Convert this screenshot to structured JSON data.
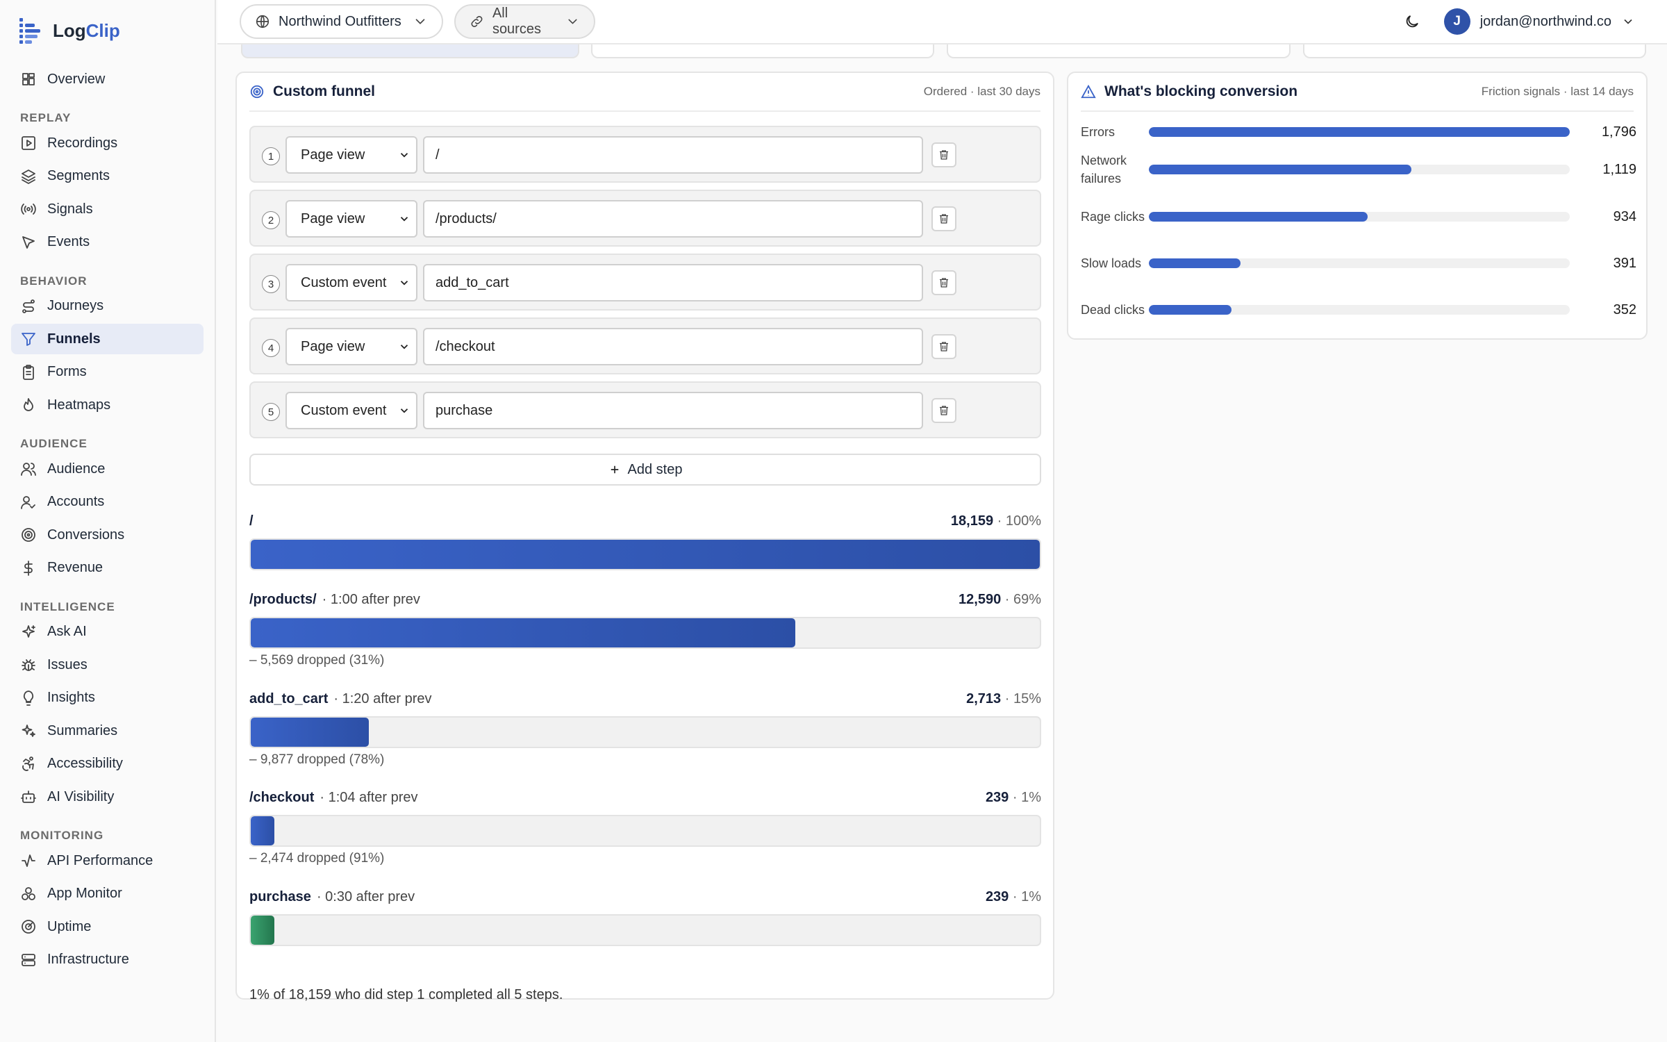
{
  "app": {
    "logo_part1": "Log",
    "logo_part2": "Clip"
  },
  "sidebar": {
    "top_items": [
      {
        "label": "Overview",
        "icon": "grid-icon"
      }
    ],
    "sections": [
      {
        "title": "REPLAY",
        "items": [
          {
            "label": "Recordings",
            "icon": "play-icon"
          },
          {
            "label": "Segments",
            "icon": "layers-icon"
          },
          {
            "label": "Signals",
            "icon": "radio-icon"
          },
          {
            "label": "Events",
            "icon": "pointer-icon"
          }
        ]
      },
      {
        "title": "BEHAVIOR",
        "items": [
          {
            "label": "Journeys",
            "icon": "route-icon"
          },
          {
            "label": "Funnels",
            "icon": "funnel-icon",
            "active": true
          },
          {
            "label": "Forms",
            "icon": "clipboard-icon"
          },
          {
            "label": "Heatmaps",
            "icon": "flame-icon"
          }
        ]
      },
      {
        "title": "AUDIENCE",
        "items": [
          {
            "label": "Audience",
            "icon": "users-icon"
          },
          {
            "label": "Accounts",
            "icon": "user-check-icon"
          },
          {
            "label": "Conversions",
            "icon": "target-icon"
          },
          {
            "label": "Revenue",
            "icon": "dollar-icon"
          }
        ]
      },
      {
        "title": "INTELLIGENCE",
        "items": [
          {
            "label": "Ask AI",
            "icon": "sparkle-icon"
          },
          {
            "label": "Issues",
            "icon": "bug-icon"
          },
          {
            "label": "Insights",
            "icon": "lightbulb-icon"
          },
          {
            "label": "Summaries",
            "icon": "sparkles-icon"
          },
          {
            "label": "Accessibility",
            "icon": "accessibility-icon"
          },
          {
            "label": "AI Visibility",
            "icon": "bot-icon"
          }
        ]
      },
      {
        "title": "MONITORING",
        "items": [
          {
            "label": "API Performance",
            "icon": "activity-icon"
          },
          {
            "label": "App Monitor",
            "icon": "boxes-icon"
          },
          {
            "label": "Uptime",
            "icon": "gauge-icon"
          },
          {
            "label": "Infrastructure",
            "icon": "server-icon"
          }
        ]
      }
    ]
  },
  "topbar": {
    "workspace": "Northwind Outfitters",
    "sources": "All sources",
    "user_initial": "J",
    "user_email": "jordan@northwind.co"
  },
  "funnel": {
    "title": "Custom funnel",
    "meta": "Ordered · last 30 days",
    "steps": [
      {
        "num": "1",
        "type": "Page view",
        "value": "/"
      },
      {
        "num": "2",
        "type": "Page view",
        "value": "/products/"
      },
      {
        "num": "3",
        "type": "Custom event",
        "value": "add_to_cart"
      },
      {
        "num": "4",
        "type": "Page view",
        "value": "/checkout"
      },
      {
        "num": "5",
        "type": "Custom event",
        "value": "purchase"
      }
    ],
    "add_step": "Add step",
    "stages": [
      {
        "label": "/",
        "after": "",
        "count": "18,159",
        "pct": "· 100%",
        "fraction": 1.0,
        "drop": "",
        "color": "blue"
      },
      {
        "label": "/products/",
        "after": "· 1:00 after prev",
        "count": "12,590",
        "pct": "· 69%",
        "fraction": 0.69,
        "drop": "– 5,569 dropped (31%)",
        "color": "blue"
      },
      {
        "label": "add_to_cart",
        "after": "· 1:20 after prev",
        "count": "2,713",
        "pct": "· 15%",
        "fraction": 0.15,
        "drop": "– 9,877 dropped (78%)",
        "color": "blue"
      },
      {
        "label": "/checkout",
        "after": "· 1:04 after prev",
        "count": "239",
        "pct": "· 1%",
        "fraction": 0.01,
        "drop": "– 2,474 dropped (91%)",
        "color": "blue"
      },
      {
        "label": "purchase",
        "after": "· 0:30 after prev",
        "count": "239",
        "pct": "· 1%",
        "fraction": 0.01,
        "drop": "",
        "color": "green"
      }
    ],
    "summary": "1% of 18,159 who did step 1 completed all 5 steps."
  },
  "blocking": {
    "title": "What's blocking conversion",
    "meta": "Friction signals · last 14 days",
    "rows": [
      {
        "label": "Errors",
        "value": "1,796",
        "fraction": 1.0
      },
      {
        "label": "Network failures",
        "value": "1,119",
        "fraction": 0.623
      },
      {
        "label": "Rage clicks",
        "value": "934",
        "fraction": 0.52
      },
      {
        "label": "Slow loads",
        "value": "391",
        "fraction": 0.218
      },
      {
        "label": "Dead clicks",
        "value": "352",
        "fraction": 0.196
      }
    ]
  },
  "colors": {
    "accent": "#3a63c8",
    "success": "#2e8b5e"
  }
}
